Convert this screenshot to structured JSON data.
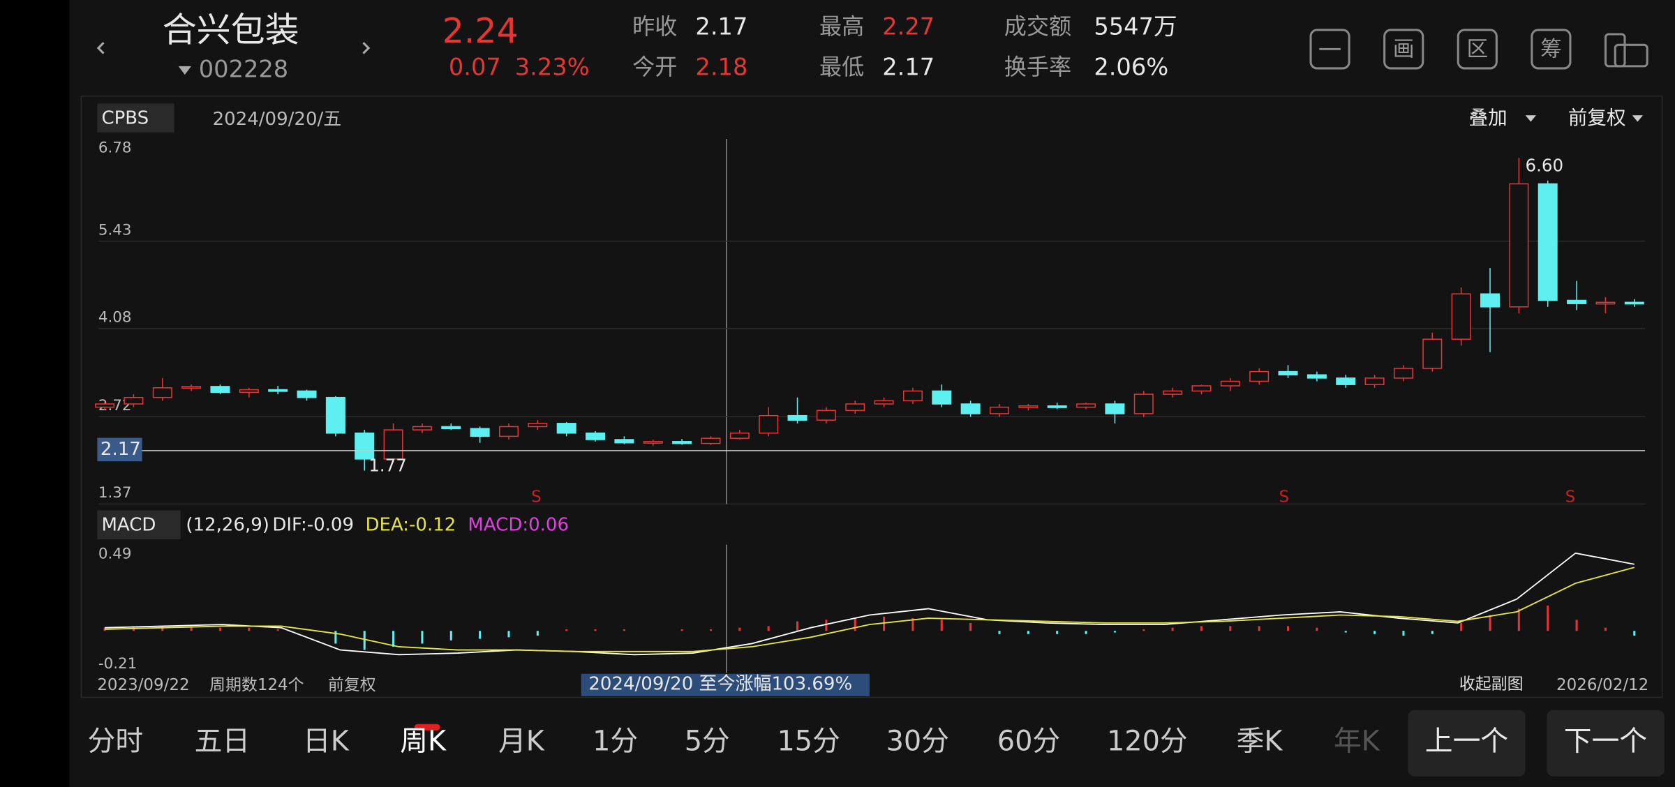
{
  "header": {
    "name": "合兴包装",
    "code": "002228",
    "price": "2.24",
    "change": "0.07",
    "change_pct": "3.23%",
    "stats": [
      [
        "昨收",
        "2.17"
      ],
      [
        "今开",
        "2.18"
      ],
      [
        "最高",
        "2.27"
      ],
      [
        "最低",
        "2.17"
      ],
      [
        "成交额",
        "5547万"
      ],
      [
        "换手率",
        "2.06%"
      ]
    ],
    "icons": [
      "画",
      "区",
      "筹"
    ]
  },
  "kline": {
    "indicator": "CPBS",
    "date": "2024/09/20/五",
    "overlay": "叠加",
    "adjust": "前复权",
    "ylim": [
      1.37,
      6.78
    ],
    "yticks": [
      6.78,
      5.43,
      4.08,
      2.72,
      1.37
    ],
    "last_price": "2.17",
    "high_label": "6.60",
    "low_label": "1.77",
    "signal": "S",
    "candles": [
      [
        2.75,
        2.85,
        2.7,
        2.8
      ],
      [
        2.8,
        2.95,
        2.75,
        2.9
      ],
      [
        2.9,
        3.2,
        2.85,
        3.05
      ],
      [
        3.05,
        3.1,
        3.0,
        3.07
      ],
      [
        3.07,
        3.1,
        2.95,
        2.98
      ],
      [
        2.98,
        3.05,
        2.9,
        3.02
      ],
      [
        3.02,
        3.08,
        2.95,
        3.0
      ],
      [
        3.0,
        3.02,
        2.85,
        2.9
      ],
      [
        2.9,
        2.92,
        2.3,
        2.35
      ],
      [
        2.35,
        2.4,
        1.77,
        1.95
      ],
      [
        1.95,
        2.5,
        1.9,
        2.4
      ],
      [
        2.4,
        2.5,
        2.35,
        2.45
      ],
      [
        2.45,
        2.5,
        2.4,
        2.42
      ],
      [
        2.42,
        2.45,
        2.2,
        2.3
      ],
      [
        2.3,
        2.5,
        2.25,
        2.45
      ],
      [
        2.45,
        2.55,
        2.4,
        2.5
      ],
      [
        2.5,
        2.52,
        2.3,
        2.35
      ],
      [
        2.35,
        2.38,
        2.22,
        2.25
      ],
      [
        2.25,
        2.3,
        2.18,
        2.2
      ],
      [
        2.2,
        2.25,
        2.15,
        2.22
      ],
      [
        2.22,
        2.26,
        2.17,
        2.19
      ],
      [
        2.19,
        2.3,
        2.17,
        2.27
      ],
      [
        2.27,
        2.4,
        2.25,
        2.35
      ],
      [
        2.35,
        2.75,
        2.3,
        2.62
      ],
      [
        2.62,
        2.9,
        2.5,
        2.55
      ],
      [
        2.55,
        2.75,
        2.5,
        2.7
      ],
      [
        2.7,
        2.85,
        2.65,
        2.8
      ],
      [
        2.8,
        2.9,
        2.75,
        2.85
      ],
      [
        2.85,
        3.05,
        2.8,
        3.0
      ],
      [
        3.0,
        3.1,
        2.75,
        2.8
      ],
      [
        2.8,
        2.85,
        2.6,
        2.65
      ],
      [
        2.65,
        2.8,
        2.6,
        2.75
      ],
      [
        2.75,
        2.8,
        2.7,
        2.77
      ],
      [
        2.77,
        2.82,
        2.72,
        2.75
      ],
      [
        2.75,
        2.82,
        2.72,
        2.8
      ],
      [
        2.8,
        2.85,
        2.5,
        2.65
      ],
      [
        2.65,
        3.0,
        2.6,
        2.95
      ],
      [
        2.95,
        3.05,
        2.9,
        3.0
      ],
      [
        3.0,
        3.1,
        2.95,
        3.08
      ],
      [
        3.08,
        3.2,
        3.0,
        3.15
      ],
      [
        3.15,
        3.35,
        3.1,
        3.3
      ],
      [
        3.3,
        3.4,
        3.2,
        3.25
      ],
      [
        3.25,
        3.3,
        3.15,
        3.2
      ],
      [
        3.2,
        3.25,
        3.05,
        3.1
      ],
      [
        3.1,
        3.25,
        3.05,
        3.2
      ],
      [
        3.2,
        3.4,
        3.15,
        3.35
      ],
      [
        3.35,
        3.9,
        3.3,
        3.8
      ],
      [
        3.8,
        4.6,
        3.7,
        4.5
      ],
      [
        4.5,
        4.9,
        3.6,
        4.3
      ],
      [
        4.3,
        6.6,
        4.2,
        6.2
      ],
      [
        6.2,
        6.25,
        4.3,
        4.4
      ],
      [
        4.4,
        4.7,
        4.25,
        4.35
      ],
      [
        4.35,
        4.45,
        4.2,
        4.37
      ],
      [
        4.37,
        4.42,
        4.3,
        4.35
      ]
    ]
  },
  "macd": {
    "name": "MACD",
    "params": "(12,26,9)",
    "dif": "DIF:-0.09",
    "dea": "DEA:-0.12",
    "macd": "MACD:0.06",
    "ylim": [
      -0.21,
      0.49
    ],
    "yticks": [
      0.49,
      -0.21
    ],
    "hist": [
      0.02,
      0.03,
      0.03,
      0.03,
      0.02,
      0.02,
      0.01,
      0,
      -0.08,
      -0.12,
      -0.1,
      -0.08,
      -0.06,
      -0.05,
      -0.04,
      -0.03,
      0.01,
      0.01,
      0.01,
      0.0,
      0.01,
      0.01,
      0.02,
      0.03,
      0.06,
      0.07,
      0.08,
      0.09,
      0.08,
      0.07,
      0.05,
      -0.02,
      -0.02,
      -0.02,
      -0.02,
      -0.01,
      0.01,
      0.02,
      0.03,
      0.03,
      0.03,
      0.03,
      0.02,
      -0.01,
      -0.02,
      -0.03,
      -0.02,
      0.05,
      0.1,
      0.14,
      0.16,
      0.07,
      0.02,
      -0.03
    ],
    "dif_line": [
      0.02,
      0.03,
      0.04,
      0.02,
      -0.12,
      -0.15,
      -0.14,
      -0.12,
      -0.13,
      -0.15,
      -0.14,
      -0.08,
      0.02,
      0.1,
      0.14,
      0.07,
      0.05,
      0.04,
      0.04,
      0.07,
      0.1,
      0.12,
      0.08,
      0.05,
      0.2,
      0.49,
      0.42
    ],
    "dea_line": [
      0.01,
      0.02,
      0.03,
      0.03,
      -0.02,
      -0.1,
      -0.12,
      -0.12,
      -0.13,
      -0.13,
      -0.13,
      -0.1,
      -0.04,
      0.04,
      0.08,
      0.07,
      0.06,
      0.05,
      0.05,
      0.06,
      0.08,
      0.1,
      0.09,
      0.06,
      0.12,
      0.3,
      0.4
    ]
  },
  "footer": {
    "start": "2023/09/22",
    "periods": "周期数124个",
    "adjust": "前复权",
    "gain": "2024/09/20 至今涨幅103.69%",
    "collapse": "收起副图",
    "end": "2026/02/12"
  },
  "tabs": [
    "分时",
    "五日",
    "日K",
    "周K",
    "月K",
    "1分",
    "5分",
    "15分",
    "30分",
    "60分",
    "120分",
    "季K",
    "年K"
  ],
  "nav": [
    "上一个",
    "下一个"
  ]
}
